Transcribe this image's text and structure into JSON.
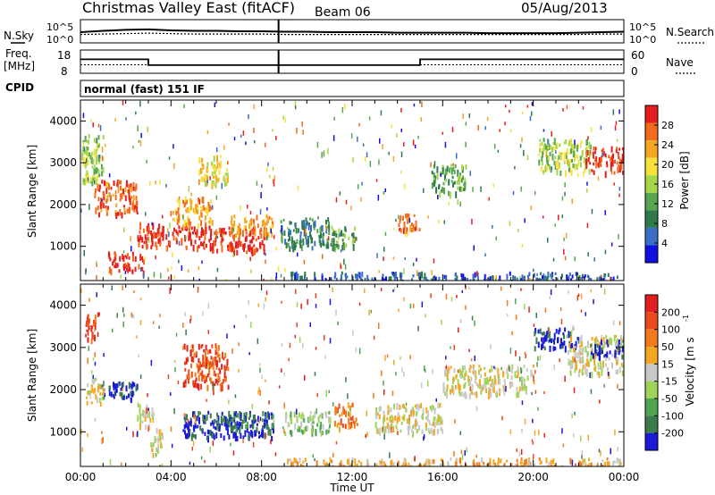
{
  "header": {
    "title": "Christmas Valley East (fitACF)",
    "beam": "Beam 06",
    "date": "05/Aug/2013"
  },
  "chart_data": [
    {
      "type": "line",
      "panel": "noise",
      "labels_left": [
        "N.Sky"
      ],
      "labels_right": [
        "N.Search"
      ],
      "left_ticks": [
        "10^5",
        "10^0"
      ],
      "right_ticks": [
        "10^5",
        "10^0"
      ],
      "series": [
        {
          "name": "N.Sky",
          "style": "solid",
          "values": [
            2.3,
            2.6,
            2.8,
            2.9,
            2.7,
            2.6,
            2.6,
            2.5,
            2.5,
            2.4,
            2.4,
            2.3,
            2.3,
            2.3,
            2.2,
            2.2,
            2.2,
            2.2,
            2.1,
            2.1,
            2.1,
            2.1,
            2.2,
            2.3,
            2.4
          ]
        },
        {
          "name": "N.Search",
          "style": "dotted",
          "values": [
            1.8,
            1.9,
            2.0,
            2.1,
            2.0,
            1.9,
            1.9,
            1.9,
            1.9,
            1.8,
            1.8,
            1.8,
            1.8,
            1.8,
            1.8,
            1.8,
            1.8,
            1.8,
            1.8,
            1.8,
            1.8,
            1.8,
            1.8,
            1.9,
            1.9
          ]
        }
      ],
      "gap_hour": 8.75
    },
    {
      "type": "line",
      "panel": "frequency",
      "labels_left": [
        "Freq.",
        "[MHz]"
      ],
      "labels_right": [
        "Nave"
      ],
      "left_ticks": [
        "18",
        "8"
      ],
      "right_ticks": [
        "60",
        "0"
      ],
      "ylim_freq": [
        8,
        18
      ],
      "ylim_nave": [
        0,
        60
      ],
      "freq_segments": [
        {
          "start": 0,
          "end": 3.0,
          "value": 14.0
        },
        {
          "start": 3.0,
          "end": 15.0,
          "value": 11.5
        },
        {
          "start": 15.0,
          "end": 24.0,
          "value": 14.0
        }
      ],
      "nave_value": 22
    },
    {
      "type": "text",
      "panel": "cpid",
      "label": "CPID",
      "value": "normal (fast) 151 IF"
    },
    {
      "type": "heatmap",
      "panel": "power",
      "ylabel": "Slant Range [km]",
      "yticks": [
        1000,
        2000,
        3000,
        4000
      ],
      "ylim": [
        180,
        4500
      ],
      "xlim": [
        0,
        24
      ],
      "colorbar_title": "Power [dB]",
      "colorbar_ticks": [
        "4",
        "8",
        "12",
        "16",
        "20",
        "24",
        "28"
      ],
      "colors": [
        "#1010e0",
        "#3a6fc6",
        "#2f7a4a",
        "#58a64f",
        "#a6d64a",
        "#f7e13a",
        "#f5a623",
        "#f26b1d",
        "#e61e1e"
      ],
      "regions": [
        {
          "t0": 0.0,
          "t1": 1.0,
          "r0": 2500,
          "r1": 3700,
          "level": 4
        },
        {
          "t0": 0.6,
          "t1": 2.5,
          "r0": 1800,
          "r1": 2600,
          "level": 7
        },
        {
          "t0": 1.2,
          "t1": 2.8,
          "r0": 400,
          "r1": 900,
          "level": 8
        },
        {
          "t0": 2.5,
          "t1": 3.5,
          "r0": 1000,
          "r1": 1600,
          "level": 8
        },
        {
          "t0": 3.2,
          "t1": 5.5,
          "r0": 1000,
          "r1": 1500,
          "level": 8
        },
        {
          "t0": 4.0,
          "t1": 5.8,
          "r0": 1500,
          "r1": 2200,
          "level": 6
        },
        {
          "t0": 5.2,
          "t1": 6.5,
          "r0": 2500,
          "r1": 3200,
          "level": 5
        },
        {
          "t0": 5.5,
          "t1": 8.2,
          "r0": 900,
          "r1": 1500,
          "level": 8
        },
        {
          "t0": 6.5,
          "t1": 8.5,
          "r0": 1300,
          "r1": 1800,
          "level": 6
        },
        {
          "t0": 8.8,
          "t1": 11.0,
          "r0": 1000,
          "r1": 1700,
          "level": 2
        },
        {
          "t0": 11.0,
          "t1": 12.2,
          "r0": 1000,
          "r1": 1500,
          "level": 3
        },
        {
          "t0": 14.0,
          "t1": 15.0,
          "r0": 1400,
          "r1": 1800,
          "level": 7
        },
        {
          "t0": 15.5,
          "t1": 17.0,
          "r0": 2300,
          "r1": 3000,
          "level": 3
        },
        {
          "t0": 20.2,
          "t1": 22.5,
          "r0": 2800,
          "r1": 3600,
          "level": 4
        },
        {
          "t0": 22.3,
          "t1": 24.0,
          "r0": 2800,
          "r1": 3400,
          "level": 8
        },
        {
          "t0": 9.0,
          "t1": 24.0,
          "r0": 180,
          "r1": 400,
          "level": 1
        }
      ]
    },
    {
      "type": "heatmap",
      "panel": "velocity",
      "ylabel": "Slant Range [km]",
      "yticks": [
        1000,
        2000,
        3000,
        4000
      ],
      "ylim": [
        180,
        4500
      ],
      "xlim": [
        0,
        24
      ],
      "xlabel": "Time UT",
      "xtick_labels": [
        "00:00",
        "04:00",
        "08:00",
        "12:00",
        "16:00",
        "20:00",
        "00:00"
      ],
      "colorbar_title": "Velocity [m s",
      "colorbar_exponent": "-1",
      "colorbar_ticks": [
        "200",
        "100",
        "50",
        "15",
        "-15",
        "-50",
        "-100",
        "-200"
      ],
      "colors": [
        "#1a1ad6",
        "#3c7c4c",
        "#4fa54f",
        "#9fd45a",
        "#c8c8c8",
        "#f5a623",
        "#f07a1d",
        "#ea4b1d",
        "#e0201e"
      ],
      "regions": [
        {
          "t0": 0.2,
          "t1": 0.8,
          "r0": 3200,
          "r1": 3900,
          "level": 7
        },
        {
          "t0": 0.8,
          "t1": 2.5,
          "r0": 1800,
          "r1": 2200,
          "level": 0
        },
        {
          "t0": 0.2,
          "t1": 1.0,
          "r0": 1700,
          "r1": 2300,
          "level": 4
        },
        {
          "t0": 2.5,
          "t1": 3.2,
          "r0": 1100,
          "r1": 1700,
          "level": 4
        },
        {
          "t0": 3.0,
          "t1": 3.6,
          "r0": 500,
          "r1": 1100,
          "level": 4
        },
        {
          "t0": 4.5,
          "t1": 6.5,
          "r0": 2100,
          "r1": 3100,
          "level": 7
        },
        {
          "t0": 4.5,
          "t1": 8.5,
          "r0": 900,
          "r1": 1500,
          "level": 0
        },
        {
          "t0": 6.0,
          "t1": 8.5,
          "r0": 1100,
          "r1": 1500,
          "level": 1
        },
        {
          "t0": 9.0,
          "t1": 11.0,
          "r0": 1000,
          "r1": 1500,
          "level": 3
        },
        {
          "t0": 11.2,
          "t1": 12.2,
          "r0": 1100,
          "r1": 1700,
          "level": 6
        },
        {
          "t0": 13.0,
          "t1": 16.0,
          "r0": 1000,
          "r1": 1700,
          "level": 4
        },
        {
          "t0": 16.0,
          "t1": 20.0,
          "r0": 1900,
          "r1": 2600,
          "level": 4
        },
        {
          "t0": 20.0,
          "t1": 22.0,
          "r0": 3000,
          "r1": 3500,
          "level": 0
        },
        {
          "t0": 21.5,
          "t1": 24.0,
          "r0": 2400,
          "r1": 3300,
          "level": 4
        },
        {
          "t0": 22.5,
          "t1": 24.0,
          "r0": 2800,
          "r1": 3200,
          "level": 0
        },
        {
          "t0": 9.0,
          "t1": 24.0,
          "r0": 180,
          "r1": 400,
          "level": 5
        }
      ]
    }
  ]
}
